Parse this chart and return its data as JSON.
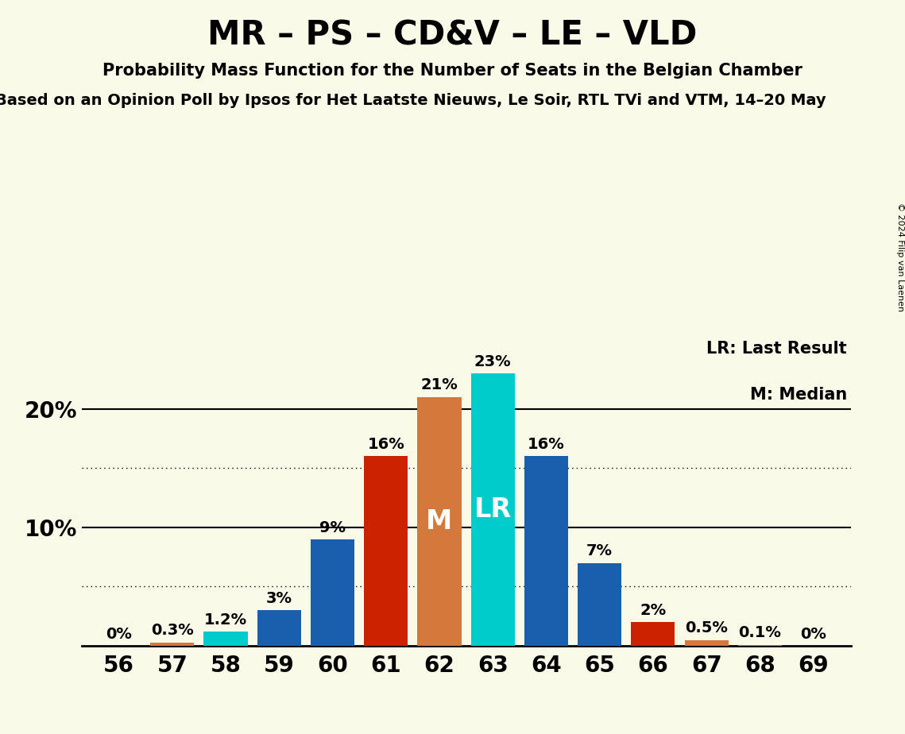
{
  "title": "MR – PS – CD&V – LE – VLD",
  "subtitle": "Probability Mass Function for the Number of Seats in the Belgian Chamber",
  "subtitle2": "Based on an Opinion Poll by Ipsos for Het Laatste Nieuws, Le Soir, RTL TVi and VTM, 14–20 May",
  "copyright": "© 2024 Filip van Laenen",
  "seats": [
    56,
    57,
    58,
    59,
    60,
    61,
    62,
    63,
    64,
    65,
    66,
    67,
    68,
    69
  ],
  "probabilities": [
    0.0,
    0.3,
    1.2,
    3.0,
    9.0,
    16.0,
    21.0,
    23.0,
    16.0,
    7.0,
    2.0,
    0.5,
    0.1,
    0.0
  ],
  "labels": [
    "0%",
    "0.3%",
    "1.2%",
    "3%",
    "9%",
    "16%",
    "21%",
    "23%",
    "16%",
    "7%",
    "2%",
    "0.5%",
    "0.1%",
    "0%"
  ],
  "bar_colors": [
    "#d4793b",
    "#d4793b",
    "#00cccc",
    "#1a5fad",
    "#1a5fad",
    "#cc2200",
    "#d4793b",
    "#00cccc",
    "#1a5fad",
    "#1a5fad",
    "#cc2200",
    "#d4793b",
    "#d4793b",
    "#d4793b"
  ],
  "median_seat": 62,
  "lr_seat": 63,
  "median_label": "M",
  "lr_label": "LR",
  "legend_lr": "LR: Last Result",
  "legend_m": "M: Median",
  "background_color": "#fafae8",
  "ylim": [
    0,
    26
  ],
  "dotted_lines": [
    5,
    15
  ],
  "solid_lines": [
    10,
    20
  ],
  "bar_width": 0.82,
  "title_fontsize": 30,
  "subtitle_fontsize": 15,
  "subtitle2_fontsize": 14,
  "ytick_fontsize": 20,
  "xtick_fontsize": 20,
  "label_fontsize": 14,
  "inner_label_fontsize": 24,
  "legend_fontsize": 15
}
